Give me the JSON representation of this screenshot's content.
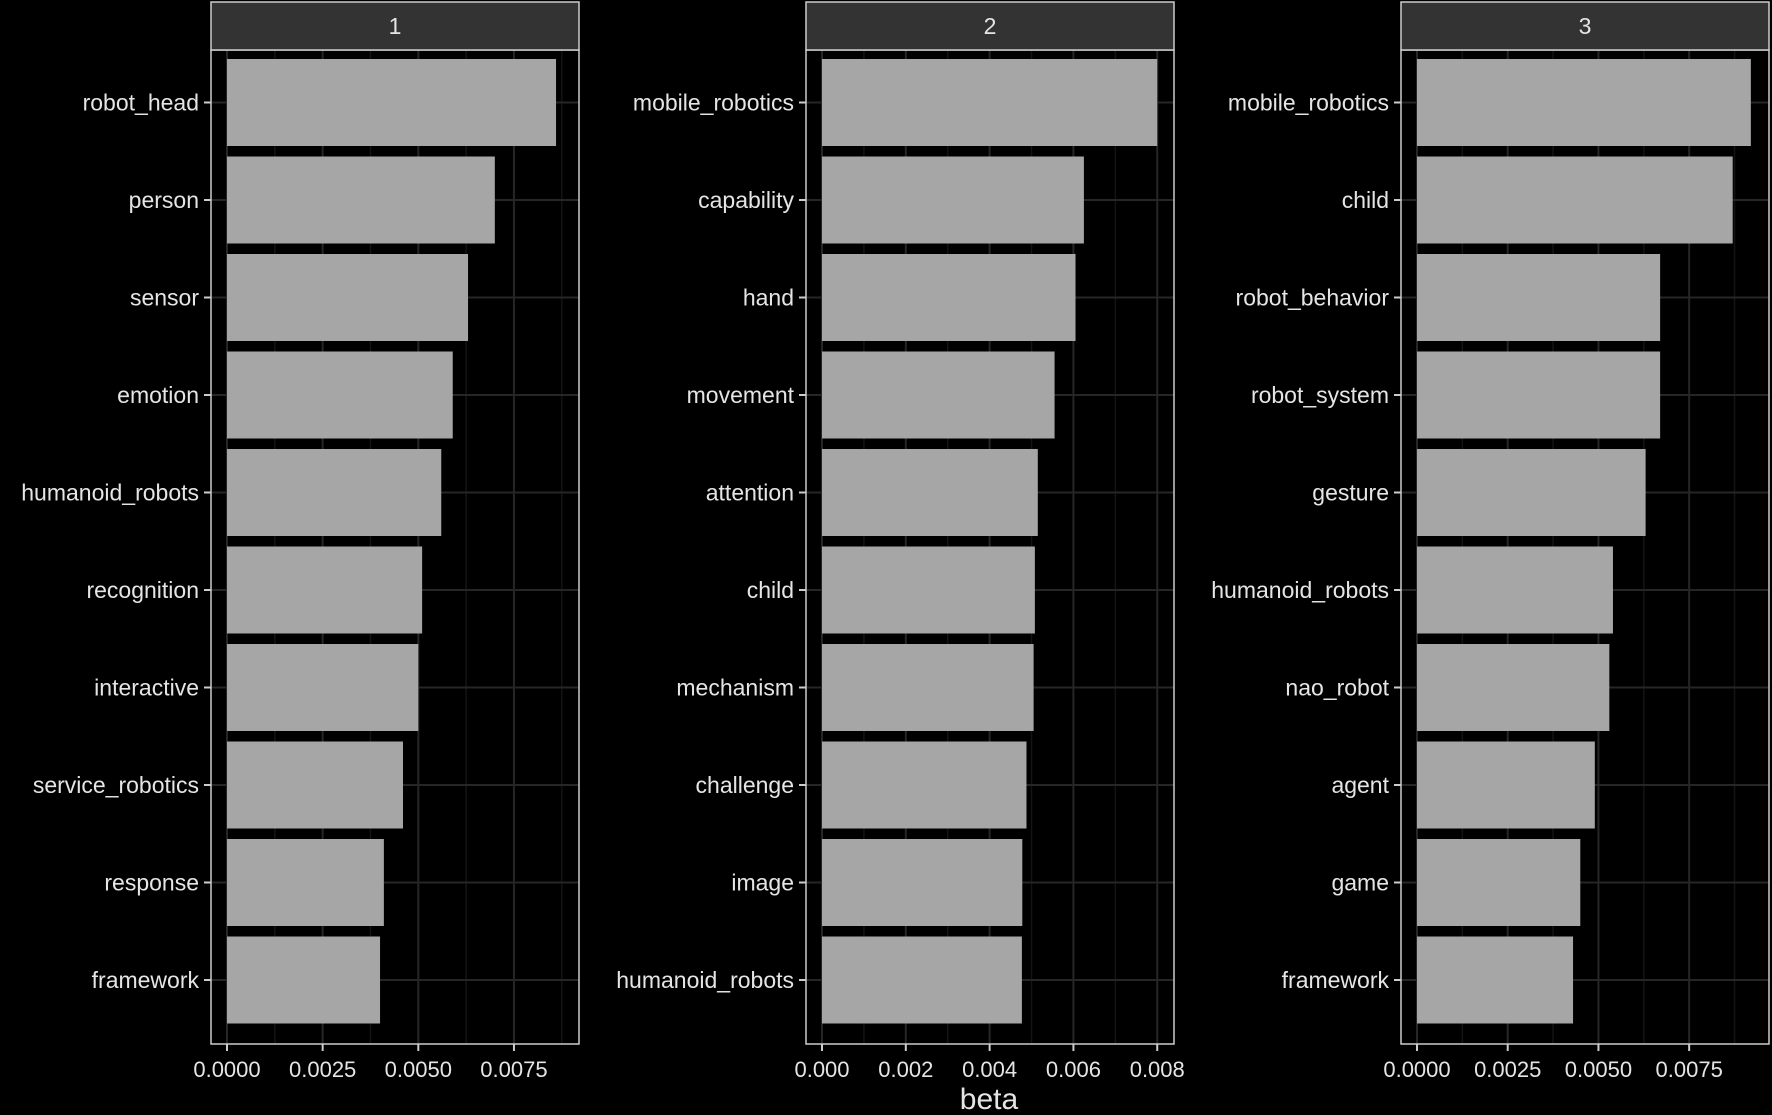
{
  "colors": {
    "background": "#000000",
    "bar": "#A6A6A6",
    "strip": "#333333",
    "border": "#CCCCCC",
    "grid_major": "#262626",
    "grid_minor": "#141414",
    "text": "#E5E5E5"
  },
  "chart_data": {
    "type": "bar",
    "orientation": "horizontal",
    "facet": "topic",
    "xlabel": "beta",
    "ylabel": "",
    "grid": true,
    "legend": "none",
    "panels": [
      {
        "strip_label": "1",
        "xlim": [
          0,
          0.0092
        ],
        "ticks": [
          0,
          0.0025,
          0.005,
          0.0075
        ],
        "tick_labels": [
          "0.0000",
          "0.0025",
          "0.0050",
          "0.0075"
        ],
        "minor_ticks": [
          0.00125,
          0.00375,
          0.00625,
          0.00875
        ],
        "terms": [
          "robot_head",
          "person",
          "sensor",
          "emotion",
          "humanoid_robots",
          "recognition",
          "interactive",
          "service_robotics",
          "response",
          "framework"
        ],
        "values": [
          0.0086,
          0.007,
          0.0063,
          0.0059,
          0.0056,
          0.0051,
          0.005,
          0.0046,
          0.0041,
          0.004
        ]
      },
      {
        "strip_label": "2",
        "xlim": [
          0,
          0.0084
        ],
        "ticks": [
          0,
          0.002,
          0.004,
          0.006,
          0.008
        ],
        "tick_labels": [
          "0.000",
          "0.002",
          "0.004",
          "0.006",
          "0.008"
        ],
        "minor_ticks": [
          0.001,
          0.003,
          0.005,
          0.007
        ],
        "terms": [
          "mobile_robotics",
          "capability",
          "hand",
          "movement",
          "attention",
          "child",
          "mechanism",
          "challenge",
          "image",
          "humanoid_robots"
        ],
        "values": [
          0.008,
          0.00625,
          0.00605,
          0.00555,
          0.00515,
          0.00508,
          0.00505,
          0.00488,
          0.00478,
          0.00477
        ]
      },
      {
        "strip_label": "3",
        "xlim": [
          0,
          0.0097
        ],
        "ticks": [
          0,
          0.0025,
          0.005,
          0.0075
        ],
        "tick_labels": [
          "0.0000",
          "0.0025",
          "0.0050",
          "0.0075"
        ],
        "minor_ticks": [
          0.00125,
          0.00375,
          0.00625,
          0.00875
        ],
        "terms": [
          "mobile_robotics",
          "child",
          "robot_behavior",
          "robot_system",
          "gesture",
          "humanoid_robots",
          "nao_robot",
          "agent",
          "game",
          "framework"
        ],
        "values": [
          0.0092,
          0.0087,
          0.0067,
          0.0067,
          0.0063,
          0.0054,
          0.0053,
          0.0049,
          0.0045,
          0.0043
        ]
      }
    ]
  }
}
